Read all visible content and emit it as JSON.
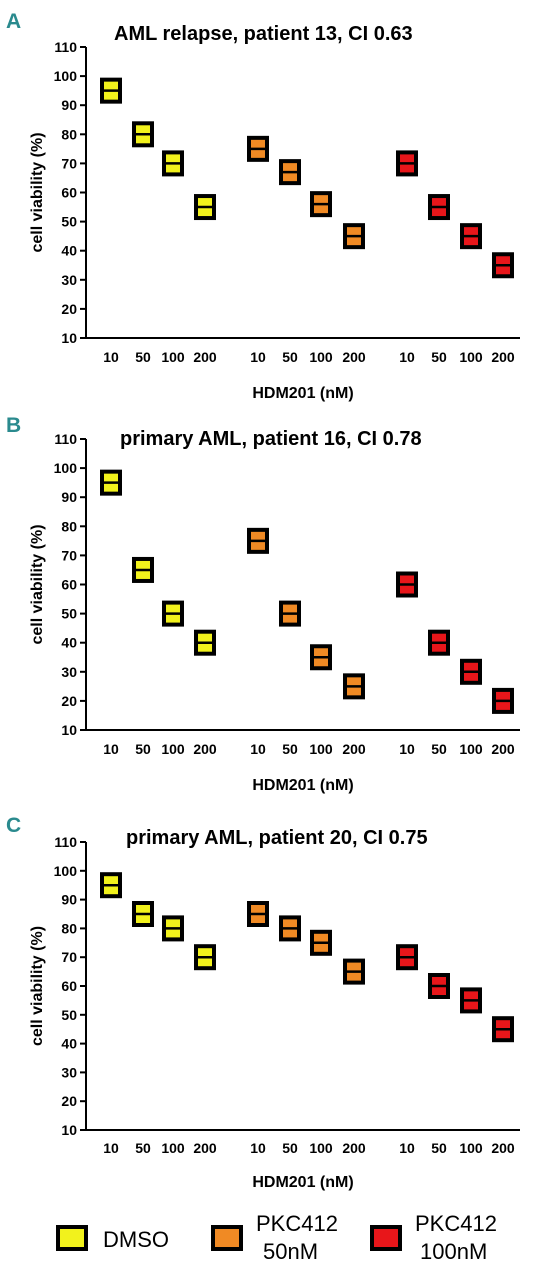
{
  "legend": {
    "items": [
      {
        "label_line1": "DMSO",
        "label_line2": "",
        "color": "#f2f21c"
      },
      {
        "label_line1": "PKC412",
        "label_line2": "50nM",
        "color": "#f08a24"
      },
      {
        "label_line1": "PKC412",
        "label_line2": "100nM",
        "color": "#e8161a"
      }
    ]
  },
  "chart_data": [
    {
      "panel": "A",
      "type": "scatter",
      "title": "AML relapse, patient 13, CI 0.63",
      "xlabel": "HDM201 (nM)",
      "ylabel": "cell viability (%)",
      "ylim": [
        10,
        110
      ],
      "yticks": [
        10,
        20,
        30,
        40,
        50,
        60,
        70,
        80,
        90,
        100,
        110
      ],
      "categories": [
        "10",
        "50",
        "100",
        "200",
        "10",
        "50",
        "100",
        "200",
        "10",
        "50",
        "100",
        "200"
      ],
      "series": [
        {
          "name": "DMSO",
          "color": "#f2f21c",
          "values": [
            95,
            80,
            70,
            55
          ]
        },
        {
          "name": "PKC412 50nM",
          "color": "#f08a24",
          "values": [
            75,
            67,
            56,
            45
          ]
        },
        {
          "name": "PKC412 100nM",
          "color": "#e8161a",
          "values": [
            70,
            55,
            45,
            35
          ]
        }
      ],
      "grid": false
    },
    {
      "panel": "B",
      "type": "scatter",
      "title": "primary AML, patient 16, CI 0.78",
      "xlabel": "HDM201 (nM)",
      "ylabel": "cell viability (%)",
      "ylim": [
        10,
        110
      ],
      "yticks": [
        10,
        20,
        30,
        40,
        50,
        60,
        70,
        80,
        90,
        100,
        110
      ],
      "categories": [
        "10",
        "50",
        "100",
        "200",
        "10",
        "50",
        "100",
        "200",
        "10",
        "50",
        "100",
        "200"
      ],
      "series": [
        {
          "name": "DMSO",
          "color": "#f2f21c",
          "values": [
            95,
            65,
            50,
            40
          ]
        },
        {
          "name": "PKC412 50nM",
          "color": "#f08a24",
          "values": [
            75,
            50,
            35,
            25
          ]
        },
        {
          "name": "PKC412 100nM",
          "color": "#e8161a",
          "values": [
            60,
            40,
            30,
            20
          ]
        }
      ],
      "grid": false
    },
    {
      "panel": "C",
      "type": "scatter",
      "title": "primary AML, patient 20, CI 0.75",
      "xlabel": "HDM201 (nM)",
      "ylabel": "cell viability (%)",
      "ylim": [
        10,
        110
      ],
      "yticks": [
        10,
        20,
        30,
        40,
        50,
        60,
        70,
        80,
        90,
        100,
        110
      ],
      "categories": [
        "10",
        "50",
        "100",
        "200",
        "10",
        "50",
        "100",
        "200",
        "10",
        "50",
        "100",
        "200"
      ],
      "series": [
        {
          "name": "DMSO",
          "color": "#f2f21c",
          "values": [
            95,
            85,
            80,
            70
          ]
        },
        {
          "name": "PKC412 50nM",
          "color": "#f08a24",
          "values": [
            85,
            80,
            75,
            65
          ]
        },
        {
          "name": "PKC412 100nM",
          "color": "#e8161a",
          "values": [
            70,
            60,
            55,
            45
          ]
        }
      ],
      "grid": false
    }
  ]
}
